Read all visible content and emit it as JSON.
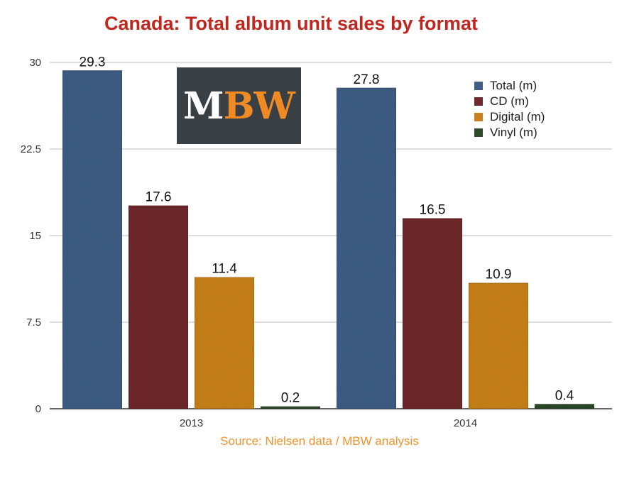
{
  "title": "Canada: Total album unit sales by format",
  "source": "Source: Nielsen data / MBW analysis",
  "logo": {
    "text_white": "M",
    "text_orange": "BW"
  },
  "chart_data": {
    "type": "bar",
    "categories": [
      "2013",
      "2014"
    ],
    "series": [
      {
        "name": "Total (m)",
        "color": "#3f5f86",
        "values": [
          29.3,
          27.8
        ]
      },
      {
        "name": "CD (m)",
        "color": "#6f2a2e",
        "values": [
          17.6,
          16.5
        ]
      },
      {
        "name": "Digital (m)",
        "color": "#c9821f",
        "values": [
          11.4,
          10.9
        ]
      },
      {
        "name": "Vinyl (m)",
        "color": "#2f4a2b",
        "values": [
          0.2,
          0.4
        ]
      }
    ],
    "value_labels": [
      [
        "29.3",
        "27.8"
      ],
      [
        "17.6",
        "16.5"
      ],
      [
        "11.4",
        "10.9"
      ],
      [
        "0.2",
        "0.4"
      ]
    ],
    "y_ticks": [
      "0",
      "7.5",
      "15",
      "22.5",
      "30"
    ],
    "y_tick_values": [
      0,
      7.5,
      15,
      22.5,
      30
    ],
    "ylim": [
      0,
      30
    ],
    "grid": true,
    "legend_position": "top-right"
  }
}
